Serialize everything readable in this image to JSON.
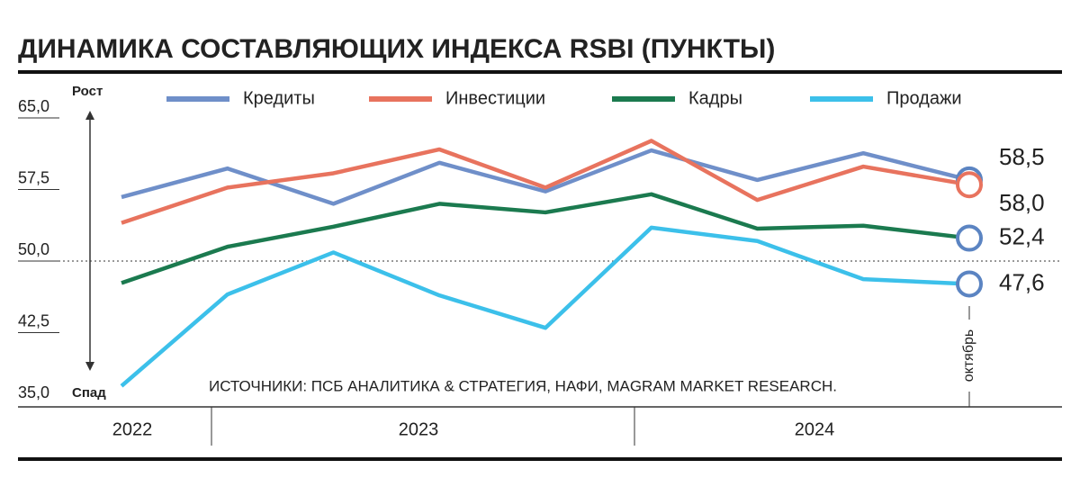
{
  "chart_data": {
    "type": "line",
    "title": "ДИНАМИКА СОСТАВЛЯЮЩИХ ИНДЕКСА RSBI (ПУНКТЫ)",
    "up_label": "Рост",
    "down_label": "Спад",
    "source": "ИСТОЧНИКИ: ПСБ АНАЛИТИКА & СТРАТЕГИЯ, НАФИ, MAGRAM MARKET RESEARCH.",
    "categories": [
      null,
      null,
      null,
      null,
      null,
      null,
      null,
      null,
      "октябрь"
    ],
    "year_groups": [
      "2022",
      "2023",
      "2024"
    ],
    "ylim": [
      35,
      65
    ],
    "yticks": [
      {
        "value": 35,
        "label": "35,0"
      },
      {
        "value": 42.5,
        "label": "42,5"
      },
      {
        "value": 50,
        "label": "50,0"
      },
      {
        "value": 57.5,
        "label": "57,5"
      },
      {
        "value": 65,
        "label": "65,0"
      }
    ],
    "reference_line": 50,
    "series": [
      {
        "name": "Кредиты",
        "color": "#6f8fc9",
        "values": [
          56.7,
          59.7,
          56.0,
          60.3,
          57.3,
          61.6,
          58.5,
          61.3,
          58.5
        ],
        "value_labels": [
          null,
          null,
          null,
          null,
          null,
          null,
          null,
          null,
          "58,5"
        ]
      },
      {
        "name": "Инвестиции",
        "color": "#e8735e",
        "values": [
          54.0,
          57.7,
          59.2,
          61.7,
          57.7,
          62.6,
          56.4,
          59.9,
          58.0
        ],
        "value_labels": [
          null,
          null,
          null,
          null,
          null,
          null,
          null,
          null,
          "58,0"
        ]
      },
      {
        "name": "Кадры",
        "color": "#1b7a4f",
        "values": [
          47.7,
          51.5,
          53.6,
          56.0,
          55.1,
          57.0,
          53.4,
          53.7,
          52.4
        ],
        "value_labels": [
          null,
          null,
          null,
          null,
          null,
          null,
          null,
          null,
          "52,4"
        ]
      },
      {
        "name": "Продажи",
        "color": "#3cc0ea",
        "values": [
          36.9,
          46.5,
          50.9,
          46.4,
          43.0,
          53.5,
          52.1,
          48.1,
          47.6
        ],
        "value_labels": [
          null,
          null,
          null,
          null,
          null,
          null,
          null,
          null,
          "47,6"
        ]
      }
    ]
  }
}
